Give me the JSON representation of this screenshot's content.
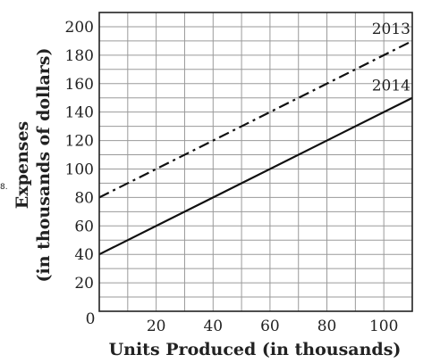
{
  "side_note": "8.",
  "chart_data": {
    "type": "line",
    "title": "",
    "xlabel": "Units Produced (in thousands)",
    "ylabel_line1": "Expenses",
    "ylabel_line2": "(in thousands of dollars)",
    "xlim": [
      0,
      110
    ],
    "ylim": [
      0,
      210
    ],
    "x_ticks": [
      20,
      40,
      60,
      80,
      100
    ],
    "y_ticks": [
      20,
      40,
      60,
      80,
      100,
      120,
      140,
      160,
      180,
      200
    ],
    "origin_label": "0",
    "grid": true,
    "series": [
      {
        "name": "2013",
        "style": "dash-dot",
        "x": [
          0,
          110
        ],
        "y": [
          80,
          190
        ]
      },
      {
        "name": "2014",
        "style": "solid",
        "x": [
          0,
          110
        ],
        "y": [
          40,
          150
        ]
      }
    ]
  }
}
